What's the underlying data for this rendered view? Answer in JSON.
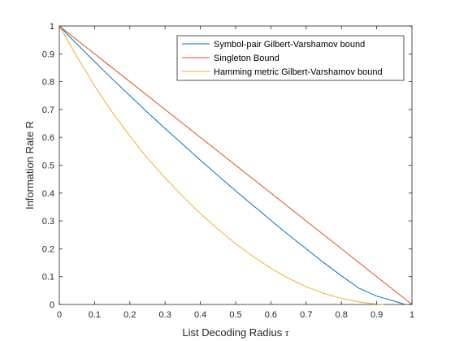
{
  "chart_data": {
    "type": "line",
    "xlabel": "List Decoding Radius",
    "xlabel_symbol": "τ",
    "ylabel": "Information Rate R",
    "xlim": [
      0,
      1
    ],
    "ylim": [
      0,
      1
    ],
    "xticks": [
      "0",
      "0.1",
      "0.2",
      "0.3",
      "0.4",
      "0.5",
      "0.6",
      "0.7",
      "0.8",
      "0.9",
      "1"
    ],
    "yticks": [
      "0",
      "0.1",
      "0.2",
      "0.3",
      "0.4",
      "0.5",
      "0.6",
      "0.7",
      "0.8",
      "0.9",
      "1"
    ],
    "grid": false,
    "legend_position": "top-right",
    "series": [
      {
        "name": "Symbol-pair Gilbert-Varshamov bound",
        "color": "#0072BD",
        "x": [
          0,
          0.05,
          0.1,
          0.15,
          0.2,
          0.25,
          0.3,
          0.35,
          0.4,
          0.45,
          0.5,
          0.55,
          0.6,
          0.65,
          0.7,
          0.75,
          0.8,
          0.85,
          0.9,
          0.95,
          0.98
        ],
        "y": [
          1,
          0.935,
          0.872,
          0.81,
          0.75,
          0.69,
          0.632,
          0.575,
          0.518,
          0.463,
          0.408,
          0.355,
          0.302,
          0.25,
          0.2,
          0.15,
          0.103,
          0.058,
          0.03,
          0.012,
          0
        ]
      },
      {
        "name": "Singleton Bound",
        "color": "#D95319",
        "x": [
          0,
          1
        ],
        "y": [
          1,
          0
        ]
      },
      {
        "name": "Hamming metric Gilbert-Varshamov bound",
        "color": "#EDB120",
        "x": [
          0,
          0.05,
          0.1,
          0.15,
          0.2,
          0.25,
          0.3,
          0.35,
          0.4,
          0.45,
          0.5,
          0.55,
          0.6,
          0.65,
          0.7,
          0.75,
          0.8,
          0.85,
          0.88,
          0.9,
          0.92
        ],
        "y": [
          1,
          0.89,
          0.785,
          0.69,
          0.605,
          0.525,
          0.455,
          0.388,
          0.327,
          0.27,
          0.218,
          0.172,
          0.13,
          0.094,
          0.064,
          0.04,
          0.022,
          0.009,
          0.004,
          0.001,
          0
        ]
      }
    ]
  }
}
